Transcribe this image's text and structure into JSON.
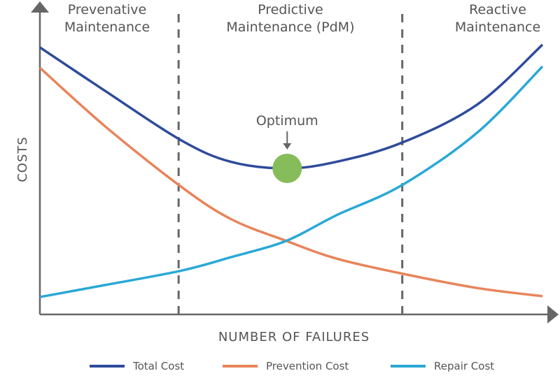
{
  "chart_data": {
    "type": "line",
    "title": "",
    "xlabel": "NUMBER OF FAILURES",
    "ylabel": "COSTS",
    "xlim": [
      0,
      100
    ],
    "ylim": [
      0,
      100
    ],
    "grid": false,
    "legend_position": "bottom",
    "x": [
      0,
      13,
      28,
      38,
      49,
      59,
      72,
      87,
      100
    ],
    "series": [
      {
        "name": "Total Cost",
        "color": "#2e4b9b",
        "values": [
          98,
          82,
          64,
          56,
          53.6,
          56,
          63,
          77,
          99
        ]
      },
      {
        "name": "Prevention Cost",
        "color": "#e8845a",
        "values": [
          90.5,
          69,
          47,
          35,
          27,
          20.5,
          15,
          9.7,
          6.7
        ]
      },
      {
        "name": "Repair Cost",
        "color": "#2aa8d6",
        "values": [
          6.4,
          10.8,
          16,
          21,
          27,
          36.4,
          47.4,
          66.7,
          91
        ]
      }
    ],
    "regions": [
      {
        "label_line1": "Prevenative",
        "label_line2": "Maintenance",
        "from": 0,
        "to": 27.6
      },
      {
        "label_line1": "Predictive",
        "label_line2": "Maintenance (PdM)",
        "from": 27.6,
        "to": 72.1
      },
      {
        "label_line1": "Reactive",
        "label_line2": "Maintenance",
        "from": 72.1,
        "to": 100
      }
    ],
    "dividers": [
      27.6,
      72.1
    ],
    "annotation": {
      "text": "Optimum",
      "x": 49.2,
      "y": 53.6,
      "color": "#86bd5a"
    }
  }
}
